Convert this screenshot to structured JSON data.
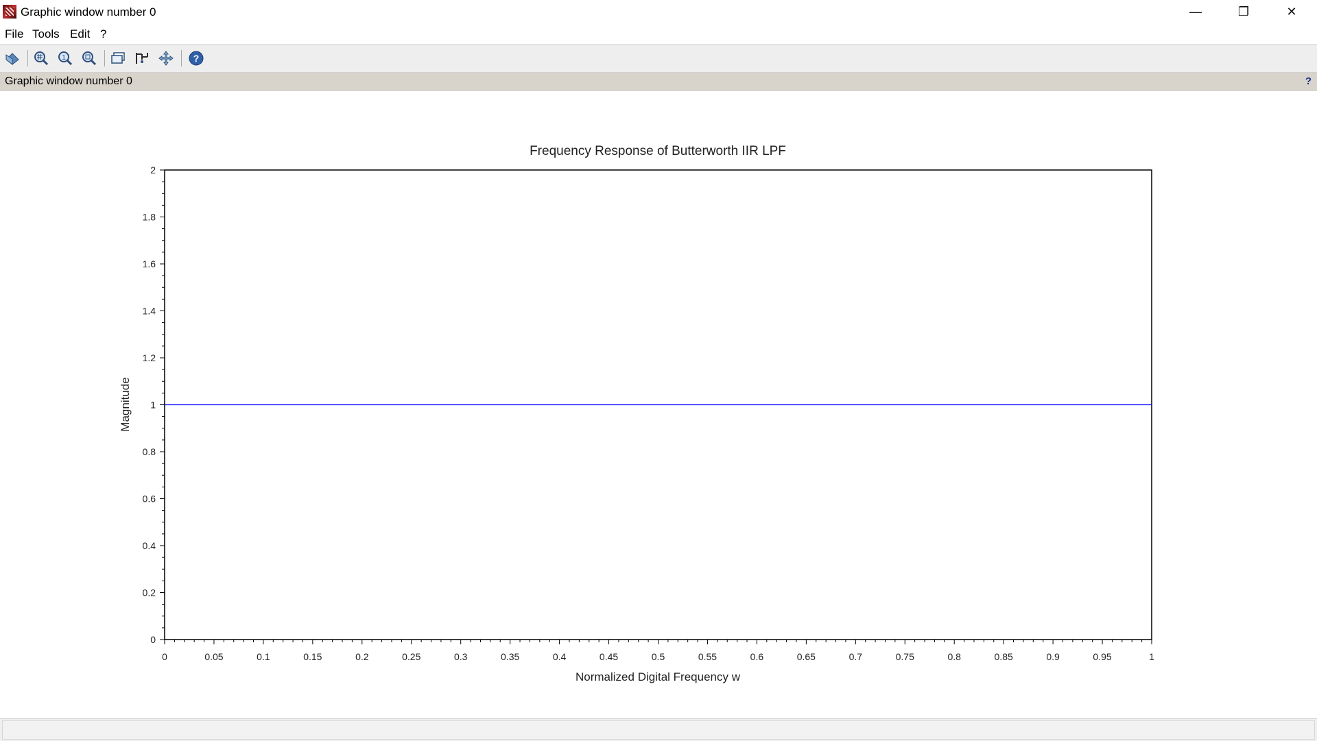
{
  "window": {
    "title": "Graphic window number 0",
    "controls": {
      "minimize": "—",
      "restore": "❐",
      "close": "✕"
    }
  },
  "menubar": {
    "items": [
      {
        "label": "File"
      },
      {
        "label": "Tools"
      },
      {
        "label": "Edit"
      },
      {
        "label": "?"
      }
    ]
  },
  "toolbar": {
    "buttons": [
      {
        "icon": "rotate-icon"
      },
      {
        "icon": "zoom-area-icon"
      },
      {
        "icon": "zoom-reset-icon"
      },
      {
        "icon": "zoom-icon"
      },
      {
        "icon": "datatip-icon"
      },
      {
        "icon": "datatip-edit-icon"
      },
      {
        "icon": "pan-icon"
      },
      {
        "icon": "help-icon"
      }
    ]
  },
  "infobar": {
    "text": "Graphic window number 0",
    "help_label": "?"
  },
  "chart_data": {
    "type": "line",
    "title": "Frequency Response of Butterworth IIR LPF",
    "xlabel": "Normalized Digital Frequency w",
    "ylabel": "Magnitude",
    "xlim": [
      0,
      1
    ],
    "ylim": [
      0,
      2
    ],
    "xticks": [
      "0",
      "0.05",
      "0.1",
      "0.15",
      "0.2",
      "0.25",
      "0.3",
      "0.35",
      "0.4",
      "0.45",
      "0.5",
      "0.55",
      "0.6",
      "0.65",
      "0.7",
      "0.75",
      "0.8",
      "0.85",
      "0.9",
      "0.95",
      "1"
    ],
    "yticks": [
      "0",
      "0.2",
      "0.4",
      "0.6",
      "0.8",
      "1",
      "1.2",
      "1.4",
      "1.6",
      "1.8",
      "2"
    ],
    "series": [
      {
        "x": [
          0,
          1
        ],
        "y": [
          1,
          1
        ],
        "color": "#0000ff"
      }
    ],
    "grid": false
  }
}
